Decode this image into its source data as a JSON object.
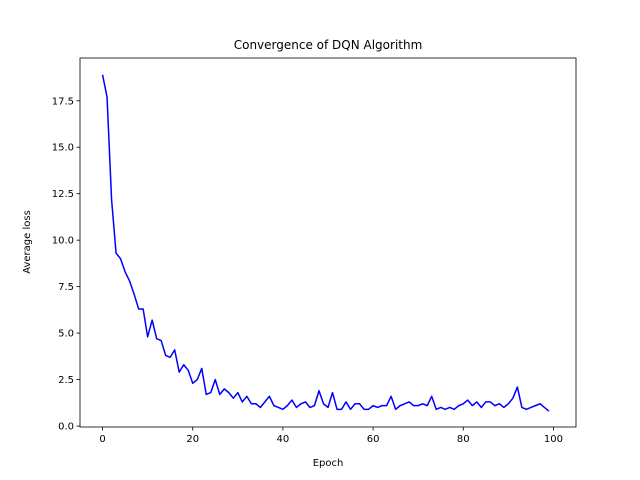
{
  "chart_data": {
    "type": "line",
    "title": "Convergence of DQN Algorithm",
    "xlabel": "Epoch",
    "ylabel": "Average loss",
    "xlim": [
      -5,
      105
    ],
    "ylim": [
      -0.05,
      19.8
    ],
    "xticks": [
      0,
      20,
      40,
      60,
      80,
      100
    ],
    "yticks": [
      0.0,
      2.5,
      5.0,
      7.5,
      10.0,
      12.5,
      15.0,
      17.5
    ],
    "xtick_labels": [
      "0",
      "20",
      "40",
      "60",
      "80",
      "100"
    ],
    "ytick_labels": [
      "0.0",
      "2.5",
      "5.0",
      "7.5",
      "10.0",
      "12.5",
      "15.0",
      "17.5"
    ],
    "grid": false,
    "legend": "none",
    "series": [
      {
        "color": "#0000ff",
        "x": [
          0,
          1,
          2,
          3,
          4,
          5,
          6,
          7,
          8,
          9,
          10,
          11,
          12,
          13,
          14,
          15,
          16,
          17,
          18,
          19,
          20,
          21,
          22,
          23,
          24,
          25,
          26,
          27,
          28,
          29,
          30,
          31,
          32,
          33,
          34,
          35,
          36,
          37,
          38,
          39,
          40,
          41,
          42,
          43,
          44,
          45,
          46,
          47,
          48,
          49,
          50,
          51,
          52,
          53,
          54,
          55,
          56,
          57,
          58,
          59,
          60,
          61,
          62,
          63,
          64,
          65,
          66,
          67,
          68,
          69,
          70,
          71,
          72,
          73,
          74,
          75,
          76,
          77,
          78,
          79,
          80,
          81,
          82,
          83,
          84,
          85,
          86,
          87,
          88,
          89,
          90,
          91,
          92,
          93,
          94,
          95,
          96,
          97,
          98,
          99
        ],
        "y": [
          18.9,
          17.7,
          12.2,
          9.3,
          9.0,
          8.3,
          7.8,
          7.1,
          6.3,
          6.3,
          4.8,
          5.7,
          4.7,
          4.6,
          3.8,
          3.7,
          4.1,
          2.9,
          3.3,
          3.0,
          2.3,
          2.5,
          3.1,
          1.7,
          1.8,
          2.5,
          1.7,
          2.0,
          1.8,
          1.5,
          1.8,
          1.3,
          1.6,
          1.2,
          1.2,
          1.0,
          1.3,
          1.6,
          1.1,
          1.0,
          0.9,
          1.1,
          1.4,
          1.0,
          1.2,
          1.3,
          1.0,
          1.1,
          1.9,
          1.2,
          1.0,
          1.8,
          0.9,
          0.9,
          1.3,
          0.9,
          1.2,
          1.2,
          0.9,
          0.9,
          1.1,
          1.0,
          1.1,
          1.1,
          1.6,
          0.9,
          1.1,
          1.2,
          1.3,
          1.1,
          1.1,
          1.2,
          1.1,
          1.6,
          0.9,
          1.0,
          0.9,
          1.0,
          0.9,
          1.1,
          1.2,
          1.4,
          1.1,
          1.3,
          1.0,
          1.3,
          1.3,
          1.1,
          1.2,
          1.0,
          1.2,
          1.5,
          2.1,
          1.0,
          0.9,
          1.0,
          1.1,
          1.2,
          1.0,
          0.8
        ]
      }
    ]
  }
}
